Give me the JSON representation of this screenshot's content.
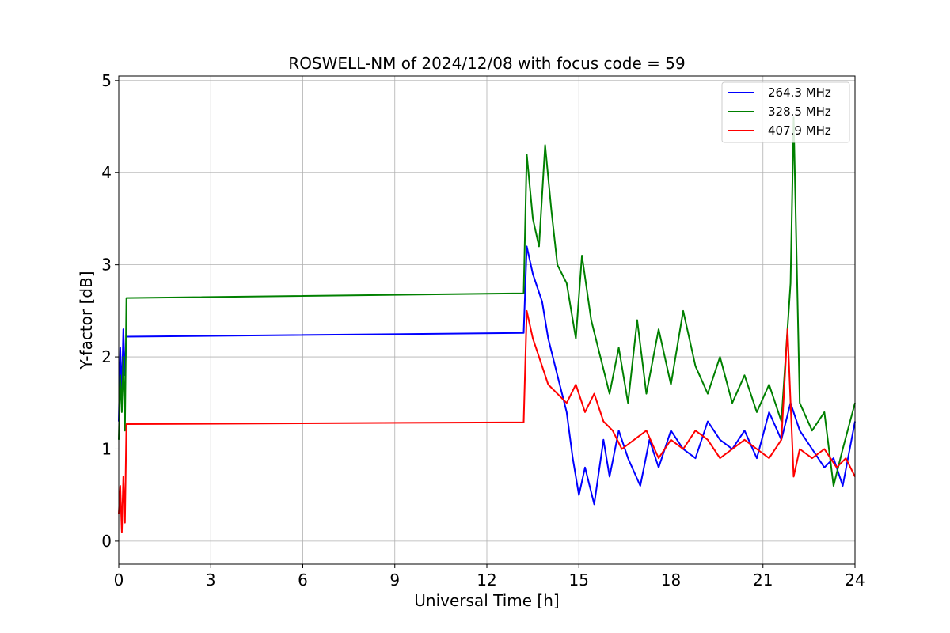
{
  "chart_data": {
    "type": "line",
    "title": "ROSWELL-NM of 2024/12/08 with focus code = 59",
    "xlabel": "Universal Time [h]",
    "ylabel": "Y-factor [dB]",
    "xlim": [
      0,
      24
    ],
    "ylim": [
      -0.25,
      5.05
    ],
    "xticks": [
      0,
      3,
      6,
      9,
      12,
      15,
      18,
      21,
      24
    ],
    "yticks": [
      0,
      1,
      2,
      3,
      4,
      5
    ],
    "grid": true,
    "legend_position": "top-right",
    "series": [
      {
        "name": "264.3 MHz",
        "color": "#0000ff",
        "x": [
          0.0,
          0.05,
          0.1,
          0.15,
          0.2,
          0.25,
          13.2,
          13.3,
          13.5,
          13.8,
          14.0,
          14.3,
          14.6,
          14.8,
          15.0,
          15.2,
          15.5,
          15.8,
          16.0,
          16.3,
          16.6,
          17.0,
          17.3,
          17.6,
          18.0,
          18.4,
          18.8,
          19.2,
          19.6,
          20.0,
          20.4,
          20.8,
          21.2,
          21.6,
          21.9,
          22.2,
          22.6,
          23.0,
          23.3,
          23.6,
          24.0
        ],
        "y": [
          1.3,
          2.1,
          1.6,
          2.3,
          1.8,
          2.22,
          2.26,
          3.2,
          2.9,
          2.6,
          2.2,
          1.8,
          1.4,
          0.9,
          0.5,
          0.8,
          0.4,
          1.1,
          0.7,
          1.2,
          0.9,
          0.6,
          1.1,
          0.8,
          1.2,
          1.0,
          0.9,
          1.3,
          1.1,
          1.0,
          1.2,
          0.9,
          1.4,
          1.1,
          1.5,
          1.2,
          1.0,
          0.8,
          0.9,
          0.6,
          1.3
        ]
      },
      {
        "name": "328.5 MHz",
        "color": "#008000",
        "x": [
          0.0,
          0.05,
          0.1,
          0.15,
          0.2,
          0.25,
          13.2,
          13.3,
          13.5,
          13.7,
          13.9,
          14.1,
          14.3,
          14.6,
          14.9,
          15.1,
          15.4,
          15.7,
          16.0,
          16.3,
          16.6,
          16.9,
          17.2,
          17.6,
          18.0,
          18.4,
          18.8,
          19.2,
          19.6,
          20.0,
          20.4,
          20.8,
          21.2,
          21.6,
          21.9,
          22.0,
          22.2,
          22.6,
          23.0,
          23.3,
          23.6,
          24.0
        ],
        "y": [
          1.1,
          1.8,
          1.4,
          2.0,
          1.2,
          2.64,
          2.69,
          4.2,
          3.5,
          3.2,
          4.3,
          3.6,
          3.0,
          2.8,
          2.2,
          3.1,
          2.4,
          2.0,
          1.6,
          2.1,
          1.5,
          2.4,
          1.6,
          2.3,
          1.7,
          2.5,
          1.9,
          1.6,
          2.0,
          1.5,
          1.8,
          1.4,
          1.7,
          1.3,
          2.8,
          4.6,
          1.5,
          1.2,
          1.4,
          0.6,
          1.0,
          1.5
        ]
      },
      {
        "name": "407.9 MHz",
        "color": "#ff0000",
        "x": [
          0.0,
          0.05,
          0.1,
          0.15,
          0.2,
          0.25,
          13.2,
          13.3,
          13.5,
          13.7,
          14.0,
          14.3,
          14.6,
          14.9,
          15.2,
          15.5,
          15.8,
          16.1,
          16.4,
          16.8,
          17.2,
          17.6,
          18.0,
          18.4,
          18.8,
          19.2,
          19.6,
          20.0,
          20.4,
          20.8,
          21.2,
          21.6,
          21.8,
          22.0,
          22.2,
          22.6,
          23.0,
          23.4,
          23.7,
          24.0
        ],
        "y": [
          0.3,
          0.6,
          0.1,
          0.7,
          0.2,
          1.27,
          1.29,
          2.5,
          2.2,
          2.0,
          1.7,
          1.6,
          1.5,
          1.7,
          1.4,
          1.6,
          1.3,
          1.2,
          1.0,
          1.1,
          1.2,
          0.9,
          1.1,
          1.0,
          1.2,
          1.1,
          0.9,
          1.0,
          1.1,
          1.0,
          0.9,
          1.1,
          2.3,
          0.7,
          1.0,
          0.9,
          1.0,
          0.8,
          0.9,
          0.7
        ]
      }
    ]
  }
}
